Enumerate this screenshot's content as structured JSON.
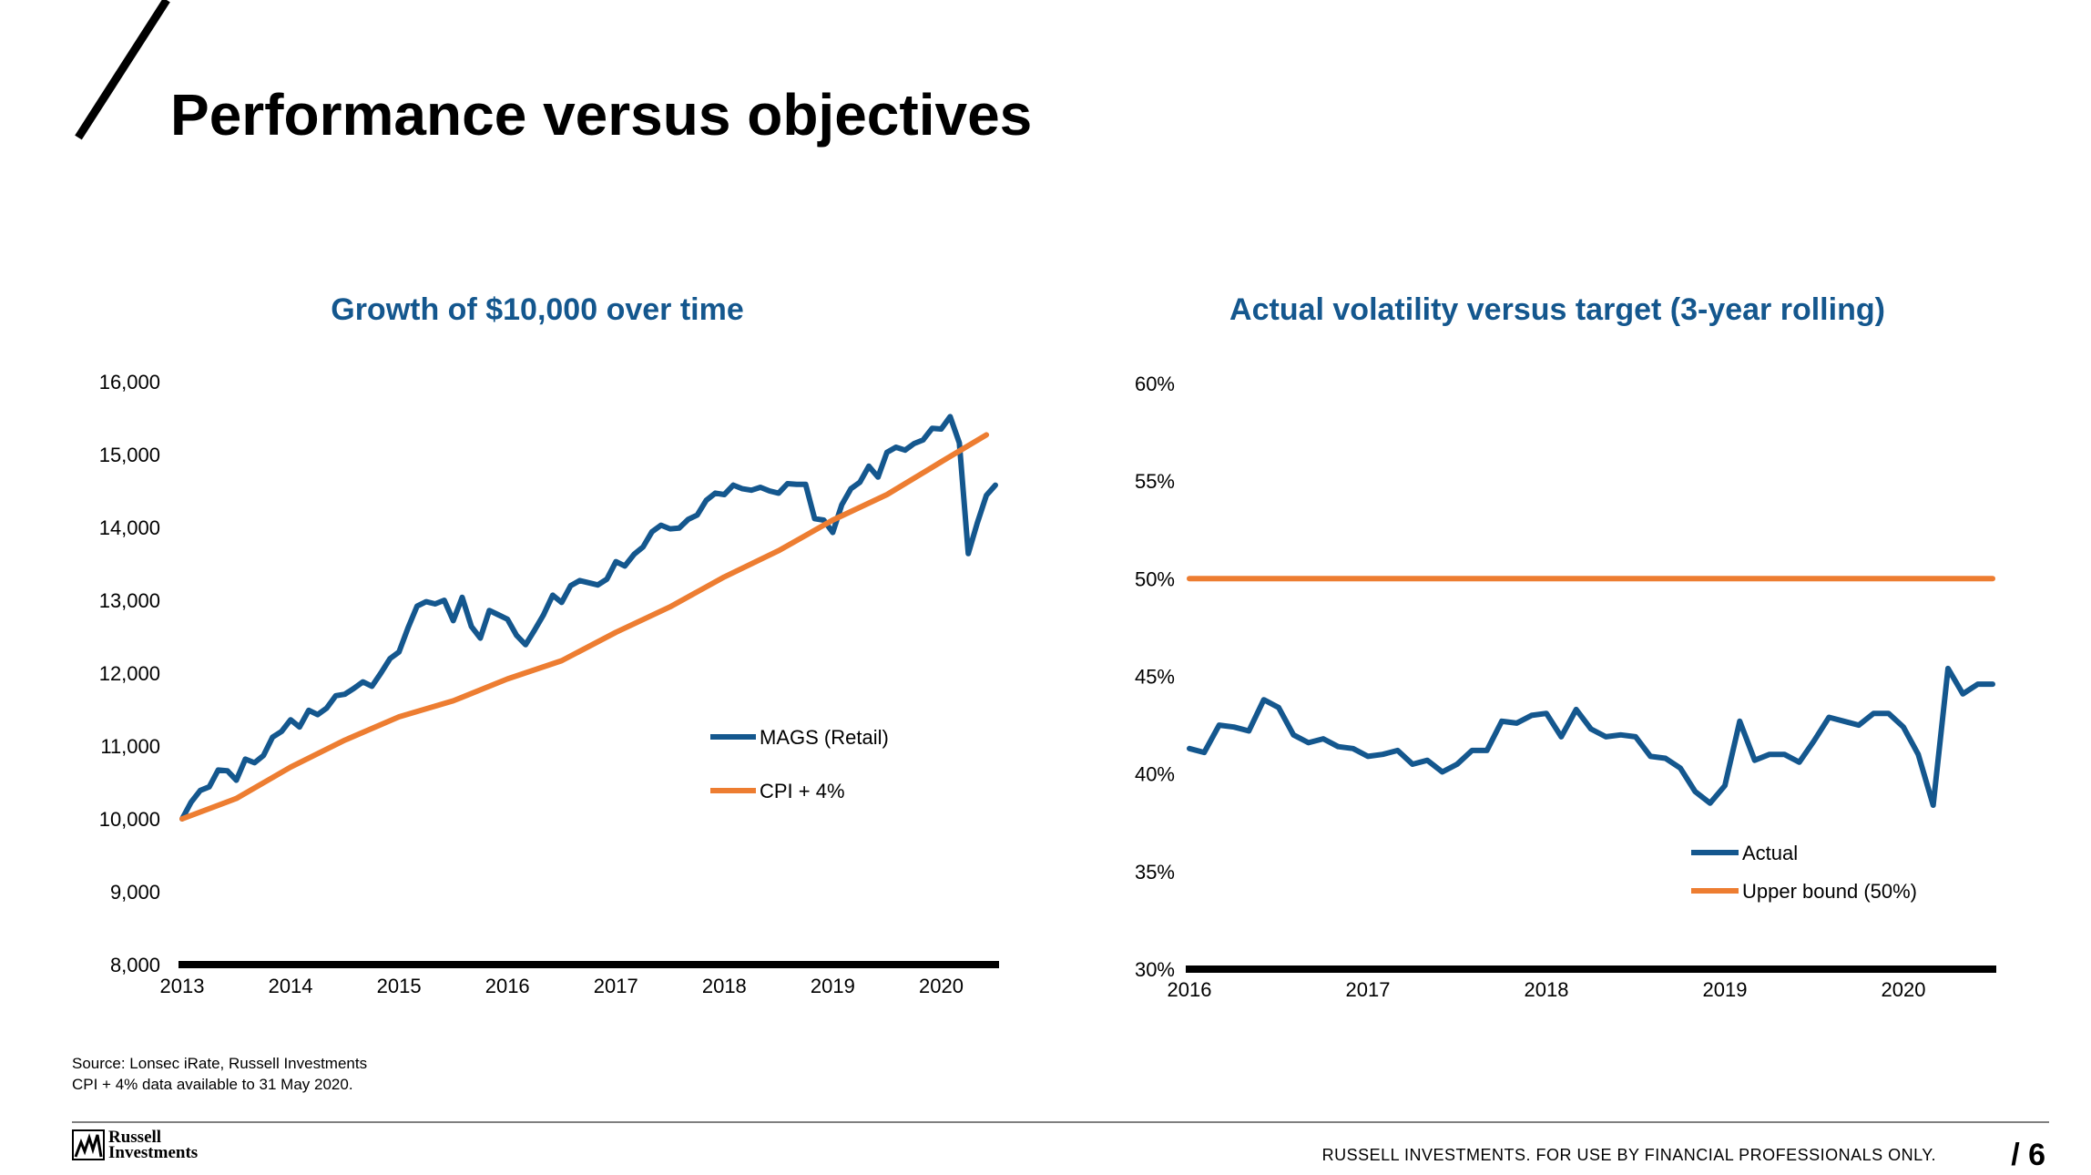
{
  "slide": {
    "title": "Performance versus objectives",
    "source_line1": "Source: Lonsec iRate, Russell Investments",
    "source_line2": "CPI + 4% data available to 31 May 2020.",
    "logo_line1": "Russell",
    "logo_line2": "Investments",
    "disclaimer": "RUSSELL INVESTMENTS.  FOR USE BY FINANCIAL PROFESSIONALS ONLY.",
    "page_number": "/ 6"
  },
  "colors": {
    "blue": "#14578e",
    "orange": "#ed7d31",
    "axis": "#000000",
    "title_blue": "#14578e"
  },
  "chart_data": [
    {
      "type": "line",
      "title": "Growth of $10,000 over time",
      "xlabel": "",
      "ylabel": "",
      "ylim": [
        8000,
        16000
      ],
      "xlim": [
        2013,
        2020.5
      ],
      "y_ticks": [
        8000,
        9000,
        10000,
        11000,
        12000,
        13000,
        14000,
        15000,
        16000
      ],
      "y_tick_labels": [
        "8,000",
        "9,000",
        "10,000",
        "11,000",
        "12,000",
        "13,000",
        "14,000",
        "15,000",
        "16,000"
      ],
      "x_ticks": [
        2013,
        2014,
        2015,
        2016,
        2017,
        2018,
        2019,
        2020
      ],
      "x_tick_labels": [
        "2013",
        "2014",
        "2015",
        "2016",
        "2017",
        "2018",
        "2019",
        "2020"
      ],
      "legend_position": "center-right",
      "series": [
        {
          "name": "MAGS (Retail)",
          "color": "#14578e",
          "x": [
            2013.0,
            2013.083,
            2013.167,
            2013.25,
            2013.333,
            2013.417,
            2013.5,
            2013.583,
            2013.667,
            2013.75,
            2013.833,
            2013.917,
            2014.0,
            2014.083,
            2014.167,
            2014.25,
            2014.333,
            2014.417,
            2014.5,
            2014.583,
            2014.667,
            2014.75,
            2014.833,
            2014.917,
            2015.0,
            2015.083,
            2015.167,
            2015.25,
            2015.333,
            2015.417,
            2015.5,
            2015.583,
            2015.667,
            2015.75,
            2015.833,
            2015.917,
            2016.0,
            2016.083,
            2016.167,
            2016.25,
            2016.333,
            2016.417,
            2016.5,
            2016.583,
            2016.667,
            2016.75,
            2016.833,
            2016.917,
            2017.0,
            2017.083,
            2017.167,
            2017.25,
            2017.333,
            2017.417,
            2017.5,
            2017.583,
            2017.667,
            2017.75,
            2017.833,
            2017.917,
            2018.0,
            2018.083,
            2018.167,
            2018.25,
            2018.333,
            2018.417,
            2018.5,
            2018.583,
            2018.667,
            2018.75,
            2018.833,
            2018.917,
            2019.0,
            2019.083,
            2019.167,
            2019.25,
            2019.333,
            2019.417,
            2019.5,
            2019.583,
            2019.667,
            2019.75,
            2019.833,
            2019.917,
            2020.0,
            2020.083,
            2020.167,
            2020.25,
            2020.333,
            2020.417,
            2020.5
          ],
          "values": [
            10000,
            10230,
            10390,
            10440,
            10670,
            10660,
            10530,
            10820,
            10770,
            10870,
            11120,
            11200,
            11360,
            11260,
            11490,
            11430,
            11520,
            11690,
            11710,
            11790,
            11880,
            11820,
            12000,
            12200,
            12290,
            12620,
            12920,
            12980,
            12950,
            13000,
            12720,
            13040,
            12640,
            12480,
            12860,
            12800,
            12740,
            12520,
            12390,
            12590,
            12800,
            13070,
            12970,
            13200,
            13270,
            13240,
            13210,
            13290,
            13530,
            13470,
            13630,
            13730,
            13940,
            14030,
            13980,
            13990,
            14110,
            14170,
            14370,
            14470,
            14450,
            14580,
            14530,
            14510,
            14550,
            14500,
            14470,
            14600,
            14590,
            14590,
            14120,
            14100,
            13930,
            14310,
            14530,
            14620,
            14840,
            14690,
            15030,
            15100,
            15060,
            15150,
            15200,
            15360,
            15350,
            15520,
            15160,
            13640,
            14060,
            14440,
            14580
          ]
        },
        {
          "name": "CPI + 4%",
          "color": "#ed7d31",
          "x": [
            2013.0,
            2013.5,
            2014.0,
            2014.5,
            2015.0,
            2015.5,
            2016.0,
            2016.5,
            2017.0,
            2017.5,
            2018.0,
            2018.5,
            2019.0,
            2019.5,
            2020.0,
            2020.417
          ],
          "values": [
            10000,
            10280,
            10710,
            11080,
            11400,
            11620,
            11920,
            12170,
            12560,
            12910,
            13320,
            13680,
            14100,
            14450,
            14900,
            15270
          ]
        }
      ]
    },
    {
      "type": "line",
      "title": "Actual volatility versus target (3-year rolling)",
      "xlabel": "",
      "ylabel": "",
      "ylim": [
        30,
        60
      ],
      "xlim": [
        2016,
        2020.5
      ],
      "y_ticks": [
        30,
        35,
        40,
        45,
        50,
        55,
        60
      ],
      "y_tick_labels": [
        "30%",
        "35%",
        "40%",
        "45%",
        "50%",
        "55%",
        "60%"
      ],
      "x_ticks": [
        2016,
        2017,
        2018,
        2019,
        2020
      ],
      "x_tick_labels": [
        "2016",
        "2017",
        "2018",
        "2019",
        "2020"
      ],
      "legend_position": "bottom-right",
      "series": [
        {
          "name": "Actual",
          "color": "#14578e",
          "x": [
            2016.0,
            2016.083,
            2016.167,
            2016.25,
            2016.333,
            2016.417,
            2016.5,
            2016.583,
            2016.667,
            2016.75,
            2016.833,
            2016.917,
            2017.0,
            2017.083,
            2017.167,
            2017.25,
            2017.333,
            2017.417,
            2017.5,
            2017.583,
            2017.667,
            2017.75,
            2017.833,
            2017.917,
            2018.0,
            2018.083,
            2018.167,
            2018.25,
            2018.333,
            2018.417,
            2018.5,
            2018.583,
            2018.667,
            2018.75,
            2018.833,
            2018.917,
            2019.0,
            2019.083,
            2019.167,
            2019.25,
            2019.333,
            2019.417,
            2019.5,
            2019.583,
            2019.667,
            2019.75,
            2019.833,
            2019.917,
            2020.0,
            2020.083,
            2020.167,
            2020.25,
            2020.333,
            2020.417,
            2020.5
          ],
          "values": [
            41.3,
            41.1,
            42.5,
            42.4,
            42.2,
            43.8,
            43.4,
            42.0,
            41.6,
            41.8,
            41.4,
            41.3,
            40.9,
            41.0,
            41.2,
            40.5,
            40.7,
            40.1,
            40.5,
            41.2,
            41.2,
            42.7,
            42.6,
            43.0,
            43.1,
            41.9,
            43.3,
            42.3,
            41.9,
            42.0,
            41.9,
            40.9,
            40.8,
            40.3,
            39.1,
            38.5,
            39.4,
            42.7,
            40.7,
            41.0,
            41.0,
            40.6,
            41.7,
            42.9,
            42.7,
            42.5,
            43.1,
            43.1,
            42.4,
            41.0,
            38.4,
            45.4,
            44.1,
            44.6,
            44.6
          ]
        },
        {
          "name": "Upper bound (50%)",
          "color": "#ed7d31",
          "x": [
            2016.0,
            2020.5
          ],
          "values": [
            50,
            50
          ]
        }
      ]
    }
  ]
}
